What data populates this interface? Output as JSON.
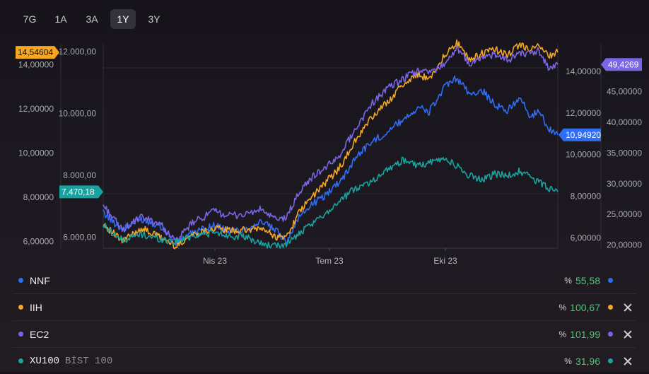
{
  "ranges": [
    {
      "label": "7G",
      "active": false
    },
    {
      "label": "1A",
      "active": false
    },
    {
      "label": "3A",
      "active": false
    },
    {
      "label": "1Y",
      "active": true
    },
    {
      "label": "3Y",
      "active": false
    }
  ],
  "chart_data": {
    "type": "line",
    "x_labels": [
      "Nis 23",
      "Tem 23",
      "Eki 23"
    ],
    "axes": {
      "IIH": {
        "ticks": [
          "6,00000",
          "8,00000",
          "10,00000",
          "12,00000",
          "14,00000"
        ],
        "min": 5.7,
        "max": 15.0,
        "side": "left-outer"
      },
      "XU100": {
        "ticks": [
          "6.000,00",
          "8.000,00",
          "10.000,00",
          "12.000,00"
        ],
        "min": 5650,
        "max": 12300,
        "side": "left-inner"
      },
      "NNF": {
        "ticks": [
          "6,00000",
          "8,00000",
          "10,00000",
          "12,00000",
          "14,00000"
        ],
        "min": 5.5,
        "max": 15.4,
        "side": "right-inner"
      },
      "EC2": {
        "ticks": [
          "20,00000",
          "25,00000",
          "30,00000",
          "35,00000",
          "40,00000",
          "45,00000"
        ],
        "min": 19.5,
        "max": 53.0,
        "side": "right-outer"
      }
    },
    "series": [
      {
        "name": "NNF",
        "color": "#2f6df6",
        "axis": "NNF",
        "last_label": "10,94920",
        "points": [
          [
            0,
            7.2
          ],
          [
            6,
            6.4
          ],
          [
            12,
            6.9
          ],
          [
            18,
            6.6
          ],
          [
            23,
            5.75
          ],
          [
            28,
            6.2
          ],
          [
            35,
            6.6
          ],
          [
            40,
            6.3
          ],
          [
            45,
            6.4
          ],
          [
            50,
            6.8
          ],
          [
            55,
            6.3
          ],
          [
            58,
            5.85
          ],
          [
            62,
            7.0
          ],
          [
            66,
            7.6
          ],
          [
            70,
            8.0
          ],
          [
            74,
            8.6
          ],
          [
            77,
            9.1
          ],
          [
            80,
            9.9
          ],
          [
            85,
            10.6
          ],
          [
            90,
            11.1
          ],
          [
            95,
            11.7
          ],
          [
            100,
            12.3
          ],
          [
            103,
            12.0
          ],
          [
            108,
            13.2
          ],
          [
            112,
            13.7
          ],
          [
            116,
            12.9
          ],
          [
            120,
            13.1
          ],
          [
            124,
            12.4
          ],
          [
            128,
            12.1
          ],
          [
            132,
            12.8
          ],
          [
            135,
            11.8
          ],
          [
            138,
            12.1
          ],
          [
            141,
            11.3
          ],
          [
            144,
            10.95
          ]
        ]
      },
      {
        "name": "IIH",
        "color": "#f5a623",
        "axis": "IIH",
        "last_label": "14,54604",
        "points": [
          [
            0,
            6.8
          ],
          [
            6,
            6.0
          ],
          [
            12,
            6.6
          ],
          [
            18,
            6.2
          ],
          [
            23,
            5.8
          ],
          [
            28,
            6.3
          ],
          [
            35,
            6.6
          ],
          [
            40,
            6.5
          ],
          [
            45,
            6.5
          ],
          [
            50,
            6.6
          ],
          [
            55,
            6.2
          ],
          [
            58,
            6.2
          ],
          [
            62,
            7.3
          ],
          [
            66,
            8.0
          ],
          [
            70,
            8.6
          ],
          [
            74,
            9.2
          ],
          [
            77,
            9.8
          ],
          [
            80,
            10.6
          ],
          [
            85,
            11.6
          ],
          [
            90,
            12.3
          ],
          [
            95,
            13.1
          ],
          [
            100,
            13.6
          ],
          [
            103,
            13.3
          ],
          [
            108,
            14.4
          ],
          [
            112,
            15.0
          ],
          [
            116,
            14.2
          ],
          [
            120,
            14.5
          ],
          [
            124,
            14.7
          ],
          [
            128,
            14.4
          ],
          [
            132,
            14.9
          ],
          [
            135,
            14.7
          ],
          [
            138,
            14.8
          ],
          [
            141,
            14.4
          ],
          [
            144,
            14.55
          ]
        ]
      },
      {
        "name": "EC2",
        "color": "#7a65e6",
        "axis": "EC2",
        "last_label": "49,4269",
        "points": [
          [
            0,
            26.5
          ],
          [
            6,
            22.5
          ],
          [
            12,
            24.5
          ],
          [
            18,
            23.5
          ],
          [
            23,
            20.5
          ],
          [
            28,
            23.5
          ],
          [
            35,
            25.5
          ],
          [
            40,
            24.8
          ],
          [
            45,
            25.0
          ],
          [
            50,
            25.8
          ],
          [
            55,
            24.0
          ],
          [
            58,
            24.5
          ],
          [
            62,
            28.5
          ],
          [
            66,
            31.0
          ],
          [
            70,
            32.5
          ],
          [
            74,
            34.0
          ],
          [
            77,
            36.5
          ],
          [
            80,
            39.0
          ],
          [
            85,
            43.0
          ],
          [
            90,
            45.5
          ],
          [
            95,
            47.0
          ],
          [
            100,
            48.5
          ],
          [
            103,
            48.0
          ],
          [
            108,
            49.5
          ],
          [
            112,
            52.0
          ],
          [
            116,
            49.5
          ],
          [
            120,
            50.5
          ],
          [
            124,
            51.0
          ],
          [
            128,
            50.0
          ],
          [
            132,
            51.5
          ],
          [
            135,
            51.0
          ],
          [
            138,
            51.8
          ],
          [
            141,
            48.8
          ],
          [
            144,
            49.4
          ]
        ]
      },
      {
        "name": "XU100",
        "color": "#19a3a0",
        "axis": "XU100",
        "last_label": "7.470,18",
        "points": [
          [
            0,
            6400
          ],
          [
            6,
            5900
          ],
          [
            12,
            6100
          ],
          [
            18,
            5950
          ],
          [
            23,
            5850
          ],
          [
            28,
            6050
          ],
          [
            35,
            6150
          ],
          [
            40,
            6050
          ],
          [
            45,
            6000
          ],
          [
            50,
            5800
          ],
          [
            55,
            5700
          ],
          [
            58,
            5800
          ],
          [
            62,
            6100
          ],
          [
            66,
            6400
          ],
          [
            70,
            6750
          ],
          [
            74,
            7100
          ],
          [
            77,
            7350
          ],
          [
            80,
            7600
          ],
          [
            85,
            7800
          ],
          [
            90,
            8200
          ],
          [
            95,
            8500
          ],
          [
            100,
            8300
          ],
          [
            103,
            8400
          ],
          [
            108,
            8550
          ],
          [
            112,
            8300
          ],
          [
            116,
            8000
          ],
          [
            120,
            7850
          ],
          [
            124,
            8050
          ],
          [
            128,
            8000
          ],
          [
            132,
            8150
          ],
          [
            135,
            7950
          ],
          [
            138,
            7800
          ],
          [
            141,
            7600
          ],
          [
            144,
            7470
          ]
        ]
      }
    ]
  },
  "legend": [
    {
      "name": "NNF",
      "sub": "",
      "pct_sign": "%",
      "pct": "55,58",
      "color": "#2f6df6",
      "closable": false,
      "mono": false
    },
    {
      "name": "IIH",
      "sub": "",
      "pct_sign": "%",
      "pct": "100,67",
      "color": "#f5a623",
      "closable": true,
      "mono": false
    },
    {
      "name": "EC2",
      "sub": "",
      "pct_sign": "%",
      "pct": "101,99",
      "color": "#7a65e6",
      "closable": true,
      "mono": false
    },
    {
      "name": "XU100",
      "sub": "BİST 100",
      "pct_sign": "%",
      "pct": "31,96",
      "color": "#19a3a0",
      "closable": true,
      "mono": true
    }
  ]
}
